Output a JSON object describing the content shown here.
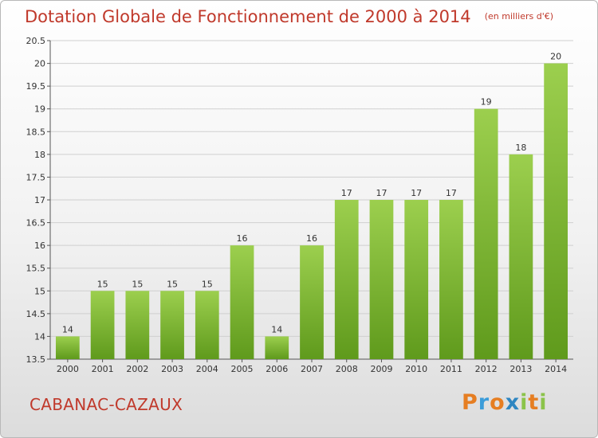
{
  "header": {
    "title": "Dotation Globale de Fonctionnement de 2000 à 2014",
    "subtitle": "(en milliers d'€)"
  },
  "footer": {
    "commune": "CABANAC-CAZAUX",
    "brand": "Proxiti",
    "brand_colors": [
      "#e67e22",
      "#3b9cd9",
      "#e67e22",
      "#2e86c1",
      "#8bc34a",
      "#e67e22",
      "#8bc34a"
    ]
  },
  "colors": {
    "title": "#c0392b",
    "bar_light": "#9ccf4e",
    "bar_dark": "#5f9a1c",
    "grid": "#cfcfcf",
    "axis_text": "#333333"
  },
  "chart_data": {
    "type": "bar",
    "categories": [
      "2000",
      "2001",
      "2002",
      "2003",
      "2004",
      "2005",
      "2006",
      "2007",
      "2008",
      "2009",
      "2010",
      "2011",
      "2012",
      "2013",
      "2014"
    ],
    "values": [
      14,
      15,
      15,
      15,
      15,
      16,
      14,
      16,
      17,
      17,
      17,
      17,
      19,
      18,
      20
    ],
    "data_labels": [
      "14",
      "15",
      "15",
      "15",
      "15",
      "16",
      "14",
      "16",
      "17",
      "17",
      "17",
      "17",
      "19",
      "18",
      "20"
    ],
    "yticks": [
      "13.5",
      "14",
      "14.5",
      "15",
      "15.5",
      "16",
      "16.5",
      "17",
      "17.5",
      "18",
      "18.5",
      "19",
      "19.5",
      "20",
      "20.5"
    ],
    "ylim": [
      13.5,
      20.5
    ],
    "grid": true,
    "legend": "none"
  }
}
